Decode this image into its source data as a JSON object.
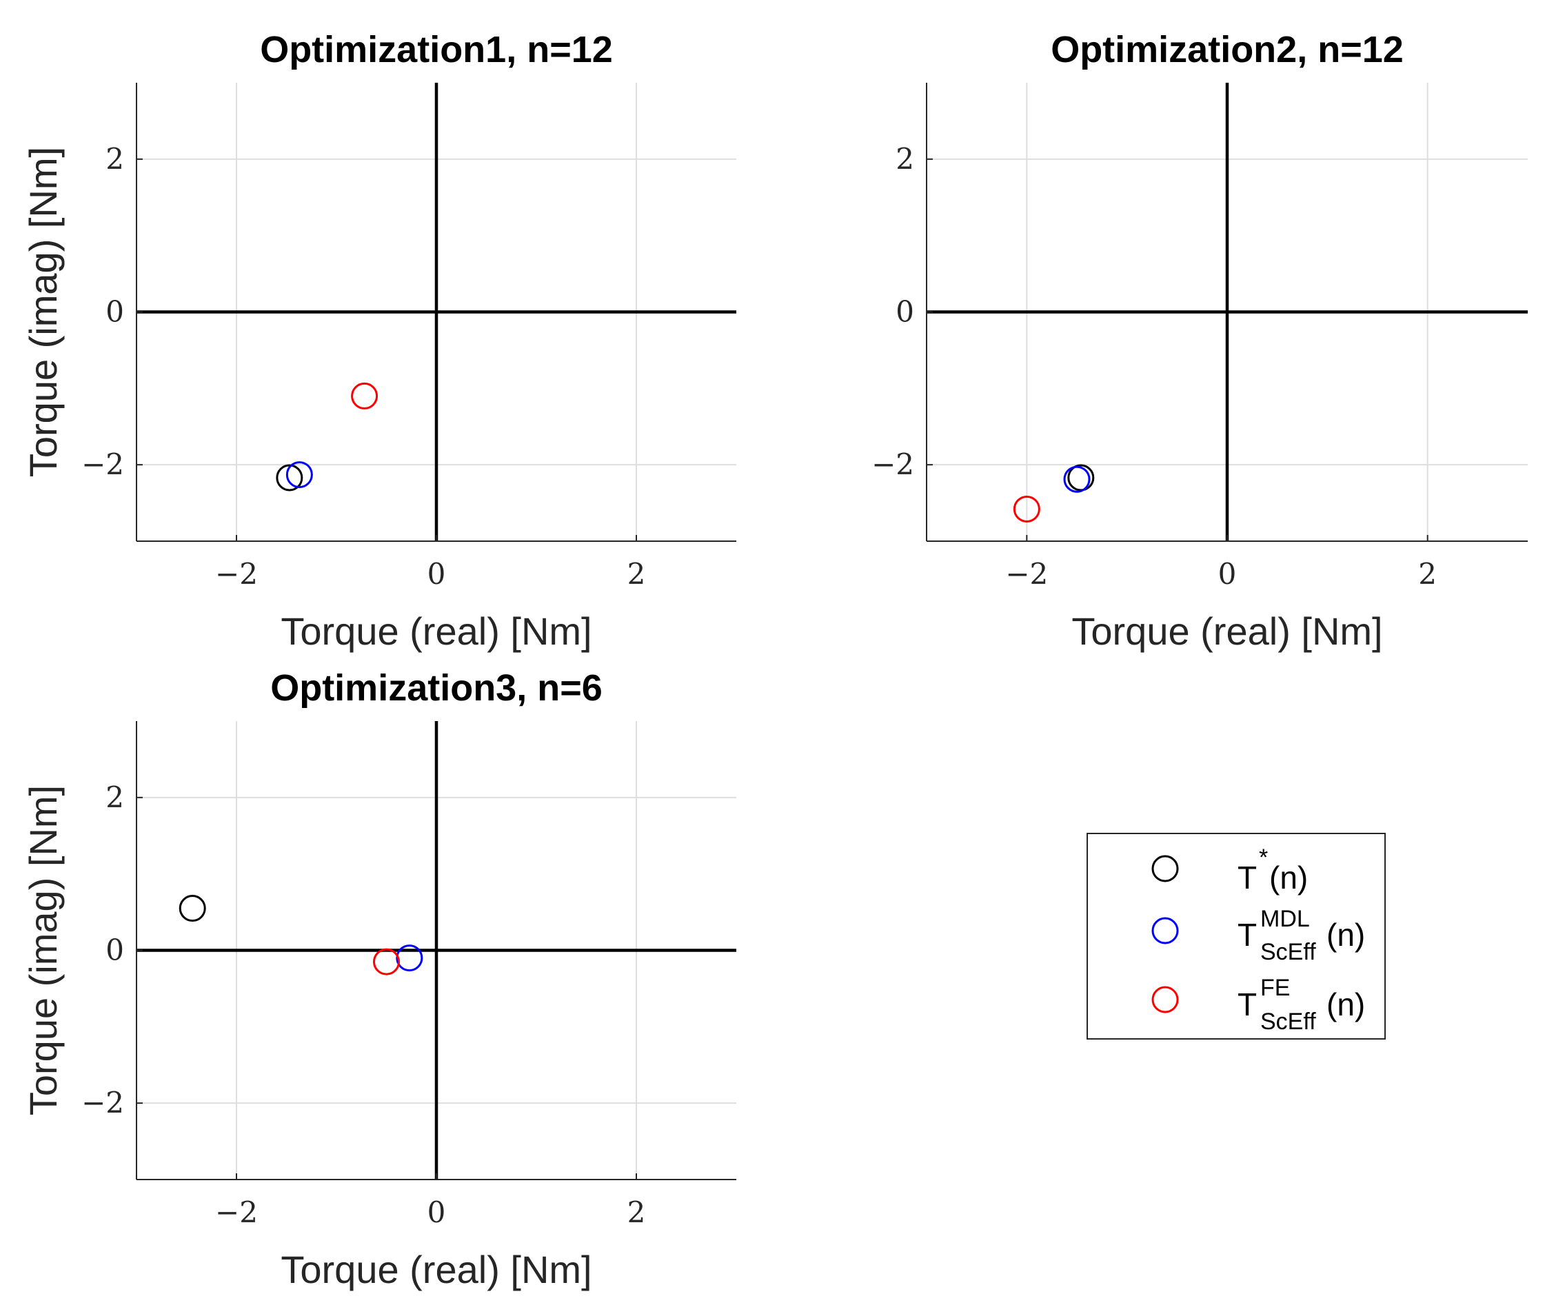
{
  "chart_data": [
    {
      "type": "scatter",
      "title": "Optimization1, n=12",
      "xlabel": "Torque (real) [Nm]",
      "ylabel": "Torque (imag) [Nm]",
      "xlim": [
        -3,
        3
      ],
      "ylim": [
        -3,
        3
      ],
      "xticks": [
        -2,
        0,
        2
      ],
      "yticks": [
        -2,
        0,
        2
      ],
      "xtick_labels": [
        "−2",
        "0",
        "2"
      ],
      "ytick_labels": [
        "−2",
        "0",
        "2"
      ],
      "grid": true,
      "series": [
        {
          "name": "T*(n)",
          "color": "#000000",
          "x": [
            -1.47
          ],
          "y": [
            -2.17
          ]
        },
        {
          "name": "T_ScEff^MDL(n)",
          "color": "#0000ff",
          "x": [
            -1.37
          ],
          "y": [
            -2.13
          ]
        },
        {
          "name": "T_ScEff^FE(n)",
          "color": "#ff0000",
          "x": [
            -0.72
          ],
          "y": [
            -1.1
          ]
        }
      ]
    },
    {
      "type": "scatter",
      "title": "Optimization2, n=12",
      "xlabel": "Torque (real) [Nm]",
      "ylabel": "Torque (imag) [Nm]",
      "xlim": [
        -3,
        3
      ],
      "ylim": [
        -3,
        3
      ],
      "xticks": [
        -2,
        0,
        2
      ],
      "yticks": [
        -2,
        0,
        2
      ],
      "xtick_labels": [
        "−2",
        "0",
        "2"
      ],
      "ytick_labels": [
        "−2",
        "0",
        "2"
      ],
      "grid": true,
      "series": [
        {
          "name": "T*(n)",
          "color": "#000000",
          "x": [
            -1.46
          ],
          "y": [
            -2.17
          ]
        },
        {
          "name": "T_ScEff^MDL(n)",
          "color": "#0000ff",
          "x": [
            -1.5
          ],
          "y": [
            -2.19
          ]
        },
        {
          "name": "T_ScEff^FE(n)",
          "color": "#ff0000",
          "x": [
            -2.0
          ],
          "y": [
            -2.58
          ]
        }
      ]
    },
    {
      "type": "scatter",
      "title": "Optimization3, n=6",
      "xlabel": "Torque (real) [Nm]",
      "ylabel": "Torque (imag) [Nm]",
      "xlim": [
        -3,
        3
      ],
      "ylim": [
        -3,
        3
      ],
      "xticks": [
        -2,
        0,
        2
      ],
      "yticks": [
        -2,
        0,
        2
      ],
      "xtick_labels": [
        "−2",
        "0",
        "2"
      ],
      "ytick_labels": [
        "−2",
        "0",
        "2"
      ],
      "grid": true,
      "series": [
        {
          "name": "T*(n)",
          "color": "#000000",
          "x": [
            -2.44
          ],
          "y": [
            0.55
          ]
        },
        {
          "name": "T_ScEff^MDL(n)",
          "color": "#0000ff",
          "x": [
            -0.27
          ],
          "y": [
            -0.1
          ]
        },
        {
          "name": "T_ScEff^FE(n)",
          "color": "#ff0000",
          "x": [
            -0.5
          ],
          "y": [
            -0.15
          ]
        }
      ]
    }
  ],
  "legend": {
    "placement": "bottom-right",
    "entries": [
      {
        "base": "T",
        "sup": "*",
        "sub": "",
        "suffix": "(n)",
        "color": "#000000"
      },
      {
        "base": "T",
        "sup": "MDL",
        "sub": "ScEff",
        "suffix": "(n)",
        "color": "#0000ff"
      },
      {
        "base": "T",
        "sup": "FE",
        "sub": "ScEff",
        "suffix": "(n)",
        "color": "#ff0000"
      }
    ]
  }
}
